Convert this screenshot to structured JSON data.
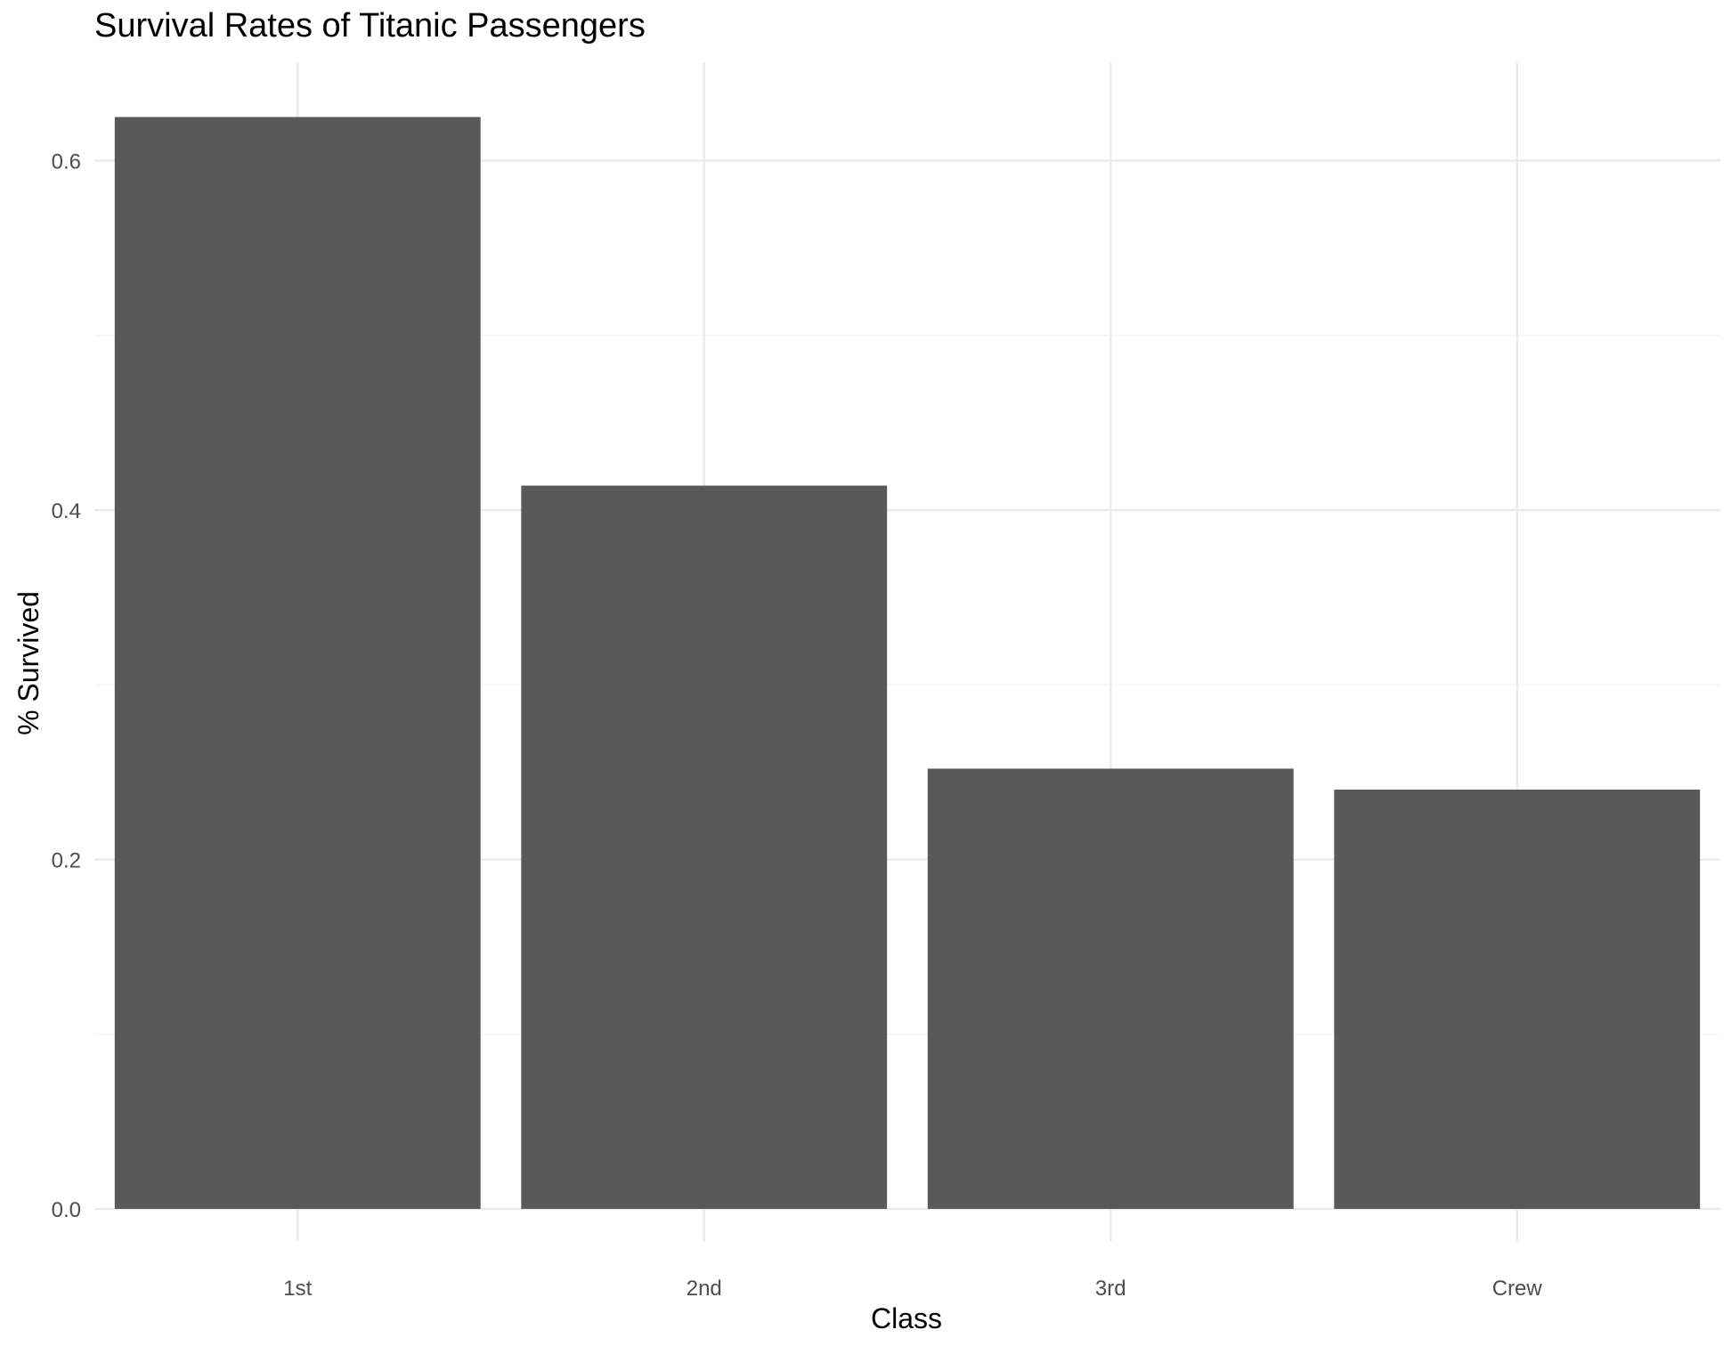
{
  "chart_data": {
    "type": "bar",
    "title": "Survival Rates of Titanic Passengers",
    "xlabel": "Class",
    "ylabel": "% Survived",
    "categories": [
      "1st",
      "2nd",
      "3rd",
      "Crew"
    ],
    "values": [
      0.625,
      0.414,
      0.252,
      0.24
    ],
    "ylim": [
      0,
      0.65
    ],
    "yticks": [
      0.0,
      0.2,
      0.4,
      0.6
    ],
    "ytick_labels": [
      "0.0",
      "0.2",
      "0.4",
      "0.6"
    ],
    "grid": true,
    "legend": "none",
    "colors": {
      "bar": "#595959",
      "grid_major": "#ebebeb",
      "grid_minor": "#f5f5f5",
      "tick_text": "#4d4d4d",
      "label_text": "#000000"
    }
  }
}
